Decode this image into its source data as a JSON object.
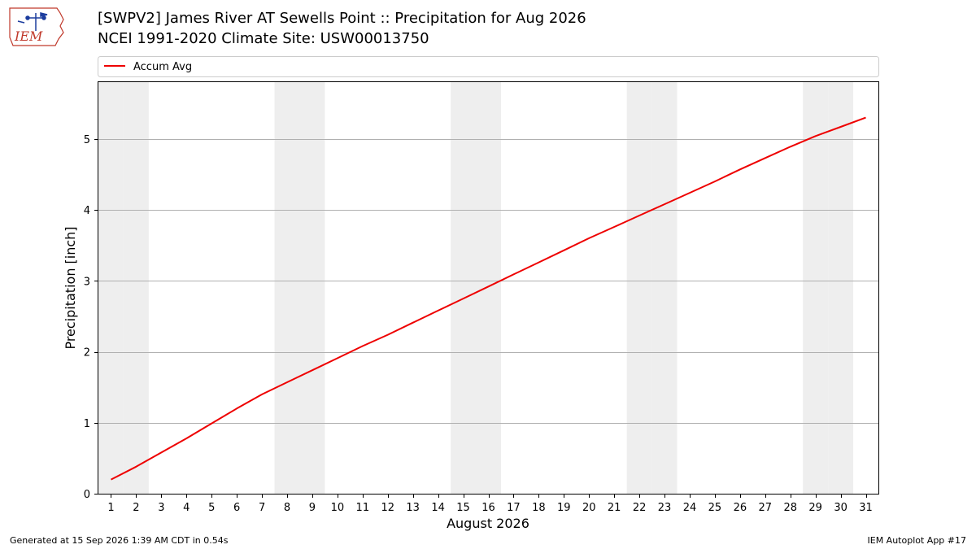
{
  "header": {
    "title_line1": "[SWPV2] James River  AT Sewells Point :: Precipitation for Aug 2026",
    "title_line2": "NCEI 1991-2020 Climate Site: USW00013750"
  },
  "logo": {
    "text": "IEM"
  },
  "footer": {
    "generated": "Generated at 15 Sep 2026 1:39 AM CDT in 0.54s",
    "app": "IEM Autoplot App #17"
  },
  "colors": {
    "line": "#ee0000",
    "weekend_shade": "#eeeeee",
    "grid": "#b0b0b0"
  },
  "chart_data": {
    "type": "line",
    "xlabel": "August 2026",
    "ylabel": "Precipitation [inch]",
    "xlim": [
      0.5,
      31.5
    ],
    "ylim": [
      0,
      5.8
    ],
    "yticks": [
      0,
      1,
      2,
      3,
      4,
      5
    ],
    "xticks": [
      1,
      2,
      3,
      4,
      5,
      6,
      7,
      8,
      9,
      10,
      11,
      12,
      13,
      14,
      15,
      16,
      17,
      18,
      19,
      20,
      21,
      22,
      23,
      24,
      25,
      26,
      27,
      28,
      29,
      30,
      31
    ],
    "grid": "horizontal",
    "legend": "top",
    "shaded_days": [
      1,
      2,
      8,
      9,
      15,
      16,
      22,
      23,
      29,
      30
    ],
    "series": [
      {
        "name": "Accum Avg",
        "x": [
          1,
          2,
          3,
          4,
          5,
          6,
          7,
          8,
          9,
          10,
          11,
          12,
          13,
          14,
          15,
          16,
          17,
          18,
          19,
          20,
          21,
          22,
          23,
          24,
          25,
          26,
          27,
          28,
          29,
          30,
          31
        ],
        "values": [
          0.2,
          0.38,
          0.58,
          0.78,
          0.99,
          1.2,
          1.4,
          1.57,
          1.74,
          1.91,
          2.08,
          2.24,
          2.41,
          2.58,
          2.75,
          2.92,
          3.09,
          3.26,
          3.43,
          3.6,
          3.76,
          3.92,
          4.08,
          4.24,
          4.4,
          4.57,
          4.73,
          4.89,
          5.04,
          5.17,
          5.3
        ]
      }
    ]
  }
}
